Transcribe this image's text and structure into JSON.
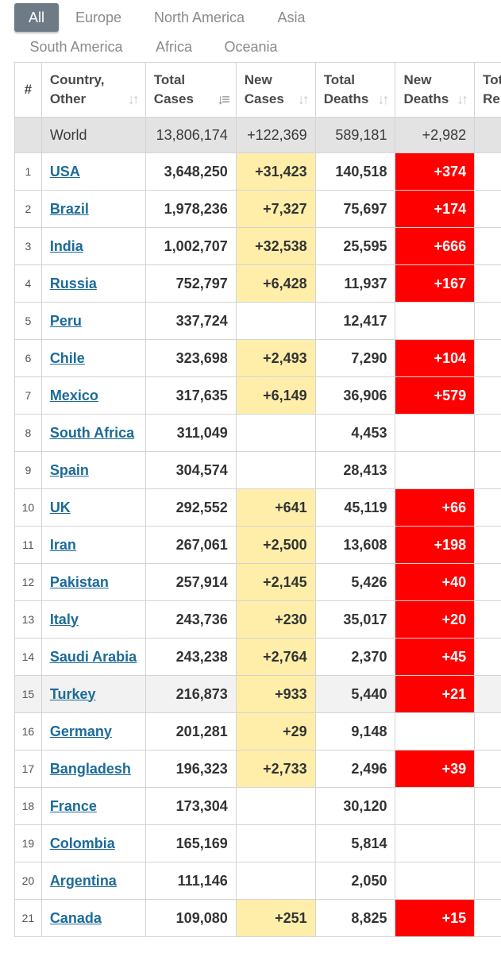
{
  "tabs": [
    {
      "label": "All",
      "active": true
    },
    {
      "label": "Europe",
      "active": false
    },
    {
      "label": "North America",
      "active": false
    },
    {
      "label": "Asia",
      "active": false
    },
    {
      "label": "South America",
      "active": false
    },
    {
      "label": "Africa",
      "active": false
    },
    {
      "label": "Oceania",
      "active": false
    }
  ],
  "headers": {
    "index": "#",
    "country": [
      "Country,",
      "Other"
    ],
    "total_cases": [
      "Total",
      "Cases"
    ],
    "new_cases": [
      "New",
      "Cases"
    ],
    "total_deaths": [
      "Total",
      "Deaths"
    ],
    "new_deaths": [
      "New",
      "Deaths"
    ],
    "total_recovered": [
      "Tot",
      "Re"
    ]
  },
  "world": {
    "name": "World",
    "total_cases": "13,806,174",
    "new_cases": "+122,369",
    "total_deaths": "589,181",
    "new_deaths": "+2,982"
  },
  "rows": [
    {
      "idx": "1",
      "country": "USA",
      "total_cases": "3,648,250",
      "new_cases": "+31,423",
      "total_deaths": "140,518",
      "new_deaths": "+374"
    },
    {
      "idx": "2",
      "country": "Brazil",
      "total_cases": "1,978,236",
      "new_cases": "+7,327",
      "total_deaths": "75,697",
      "new_deaths": "+174"
    },
    {
      "idx": "3",
      "country": "India",
      "total_cases": "1,002,707",
      "new_cases": "+32,538",
      "total_deaths": "25,595",
      "new_deaths": "+666"
    },
    {
      "idx": "4",
      "country": "Russia",
      "total_cases": "752,797",
      "new_cases": "+6,428",
      "total_deaths": "11,937",
      "new_deaths": "+167"
    },
    {
      "idx": "5",
      "country": "Peru",
      "total_cases": "337,724",
      "new_cases": "",
      "total_deaths": "12,417",
      "new_deaths": ""
    },
    {
      "idx": "6",
      "country": "Chile",
      "total_cases": "323,698",
      "new_cases": "+2,493",
      "total_deaths": "7,290",
      "new_deaths": "+104"
    },
    {
      "idx": "7",
      "country": "Mexico",
      "total_cases": "317,635",
      "new_cases": "+6,149",
      "total_deaths": "36,906",
      "new_deaths": "+579"
    },
    {
      "idx": "8",
      "country": "South Africa",
      "total_cases": "311,049",
      "new_cases": "",
      "total_deaths": "4,453",
      "new_deaths": ""
    },
    {
      "idx": "9",
      "country": "Spain",
      "total_cases": "304,574",
      "new_cases": "",
      "total_deaths": "28,413",
      "new_deaths": ""
    },
    {
      "idx": "10",
      "country": "UK",
      "total_cases": "292,552",
      "new_cases": "+641",
      "total_deaths": "45,119",
      "new_deaths": "+66"
    },
    {
      "idx": "11",
      "country": "Iran",
      "total_cases": "267,061",
      "new_cases": "+2,500",
      "total_deaths": "13,608",
      "new_deaths": "+198"
    },
    {
      "idx": "12",
      "country": "Pakistan",
      "total_cases": "257,914",
      "new_cases": "+2,145",
      "total_deaths": "5,426",
      "new_deaths": "+40"
    },
    {
      "idx": "13",
      "country": "Italy",
      "total_cases": "243,736",
      "new_cases": "+230",
      "total_deaths": "35,017",
      "new_deaths": "+20"
    },
    {
      "idx": "14",
      "country": "Saudi Arabia",
      "total_cases": "243,238",
      "new_cases": "+2,764",
      "total_deaths": "2,370",
      "new_deaths": "+45"
    },
    {
      "idx": "15",
      "country": "Turkey",
      "total_cases": "216,873",
      "new_cases": "+933",
      "total_deaths": "5,440",
      "new_deaths": "+21"
    },
    {
      "idx": "16",
      "country": "Germany",
      "total_cases": "201,281",
      "new_cases": "+29",
      "total_deaths": "9,148",
      "new_deaths": ""
    },
    {
      "idx": "17",
      "country": "Bangladesh",
      "total_cases": "196,323",
      "new_cases": "+2,733",
      "total_deaths": "2,496",
      "new_deaths": "+39"
    },
    {
      "idx": "18",
      "country": "France",
      "total_cases": "173,304",
      "new_cases": "",
      "total_deaths": "30,120",
      "new_deaths": ""
    },
    {
      "idx": "19",
      "country": "Colombia",
      "total_cases": "165,169",
      "new_cases": "",
      "total_deaths": "5,814",
      "new_deaths": ""
    },
    {
      "idx": "20",
      "country": "Argentina",
      "total_cases": "111,146",
      "new_cases": "",
      "total_deaths": "2,050",
      "new_deaths": ""
    },
    {
      "idx": "21",
      "country": "Canada",
      "total_cases": "109,080",
      "new_cases": "+251",
      "total_deaths": "8,825",
      "new_deaths": "+15"
    }
  ],
  "colors": {
    "tab_active_bg": "#6e7b86",
    "world_row_bg": "#e3e3e3",
    "new_cases_bg": "#ffeeaa",
    "new_deaths_bg": "#ff0000",
    "link": "#1c6b98"
  },
  "sort_icon": "sort-icon"
}
